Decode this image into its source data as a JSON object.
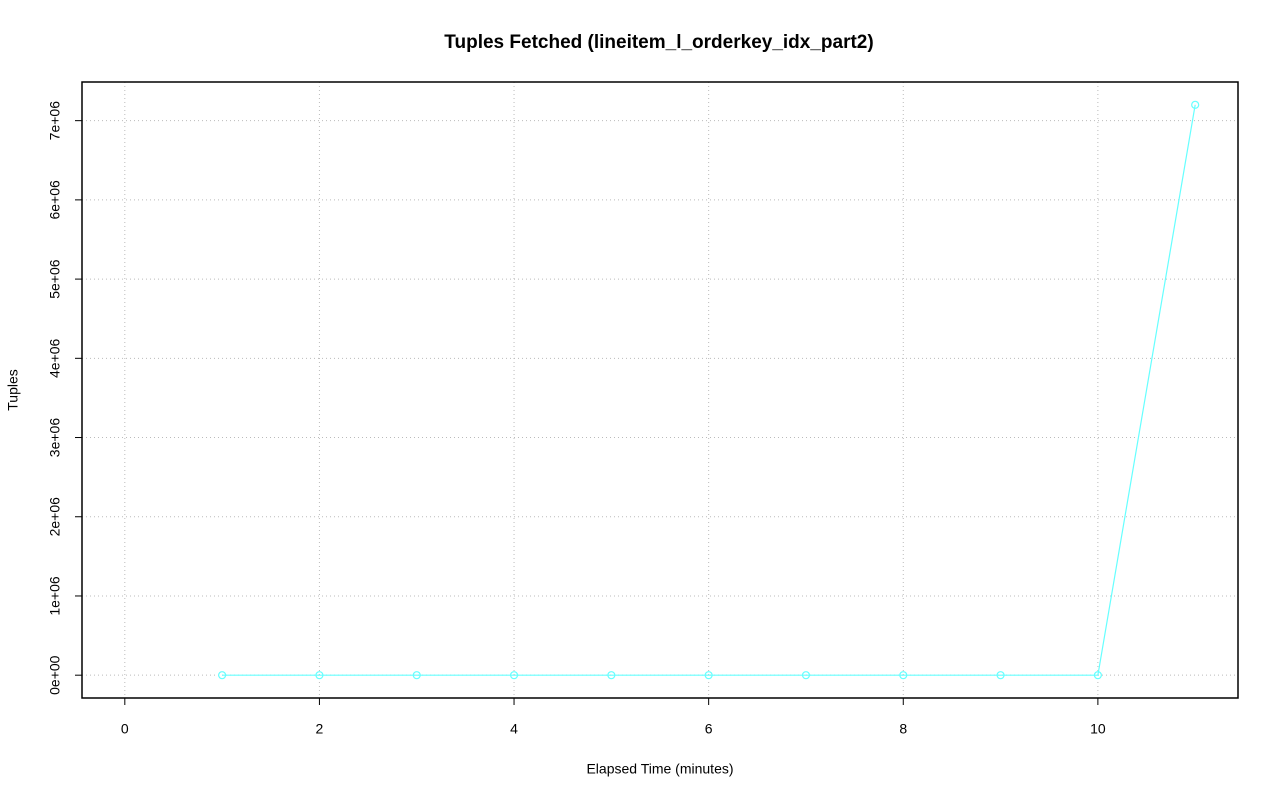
{
  "chart_data": {
    "type": "line",
    "title": "Tuples Fetched (lineitem_l_orderkey_idx_part2)",
    "xlabel": "Elapsed Time (minutes)",
    "ylabel": "Tuples",
    "x": [
      1,
      2,
      3,
      4,
      5,
      6,
      7,
      8,
      9,
      10,
      11
    ],
    "series": [
      {
        "color": "#66ffff",
        "values": [
          0,
          0,
          0,
          0,
          0,
          0,
          0,
          0,
          0,
          0,
          7200000
        ]
      }
    ],
    "xlim": [
      -0.44,
      11.44
    ],
    "xticks": [
      0,
      2,
      4,
      6,
      8,
      10
    ],
    "ylim": [
      -288000,
      7488000
    ],
    "yticks": [
      {
        "value": 0,
        "label": "0e+00"
      },
      {
        "value": 1000000,
        "label": "1e+06"
      },
      {
        "value": 2000000,
        "label": "2e+06"
      },
      {
        "value": 3000000,
        "label": "3e+06"
      },
      {
        "value": 4000000,
        "label": "4e+06"
      },
      {
        "value": 5000000,
        "label": "5e+06"
      },
      {
        "value": 6000000,
        "label": "6e+06"
      },
      {
        "value": 7000000,
        "label": "7e+06"
      }
    ],
    "grid": true
  }
}
